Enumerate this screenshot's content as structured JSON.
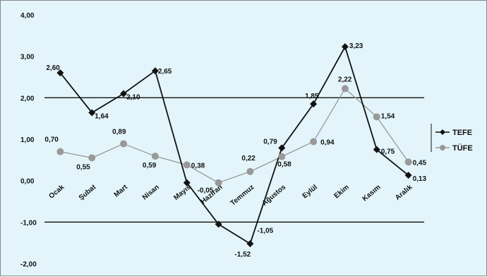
{
  "chart_data": {
    "type": "line",
    "categories": [
      "Ocak",
      "Şubat",
      "Mart",
      "Nisan",
      "Mayıs",
      "Haziran",
      "Temmuz",
      "Ağustos",
      "Eylül",
      "Ekim",
      "Kasım",
      "Aralık"
    ],
    "y_tick_labels": [
      "4,00",
      "3,00",
      "2,00",
      "1,00",
      "0,00",
      "-1,00",
      "-2,00"
    ],
    "ylim": [
      -2,
      4
    ],
    "grid_lines_at": [
      2,
      -1
    ],
    "legend_position": "right",
    "series": [
      {
        "name": "TEFE",
        "color": "#111111",
        "marker": "diamond",
        "values": [
          2.6,
          1.64,
          2.1,
          2.65,
          -0.05,
          -1.05,
          -1.52,
          0.79,
          1.85,
          3.23,
          0.75,
          0.13
        ],
        "labels": [
          "2,60",
          "1,64",
          "2,10",
          "2,65",
          "",
          "",
          "-1,52",
          "0,79",
          "1,85",
          "3,23",
          "0,75",
          "0,13"
        ]
      },
      {
        "name": "TÜFE",
        "color": "#999999",
        "marker": "circle",
        "values": [
          0.7,
          0.55,
          0.89,
          0.59,
          0.38,
          -0.05,
          0.22,
          0.58,
          0.94,
          2.22,
          1.54,
          0.45
        ],
        "labels": [
          "0,70",
          "0,55",
          "0,89",
          "0,59",
          "0,38",
          "-0,05",
          "0,22",
          "0,58",
          "0,94",
          "2,22",
          "1,54",
          "0,45"
        ]
      }
    ],
    "extra_labels": [
      "0,13",
      "-1,05"
    ]
  }
}
